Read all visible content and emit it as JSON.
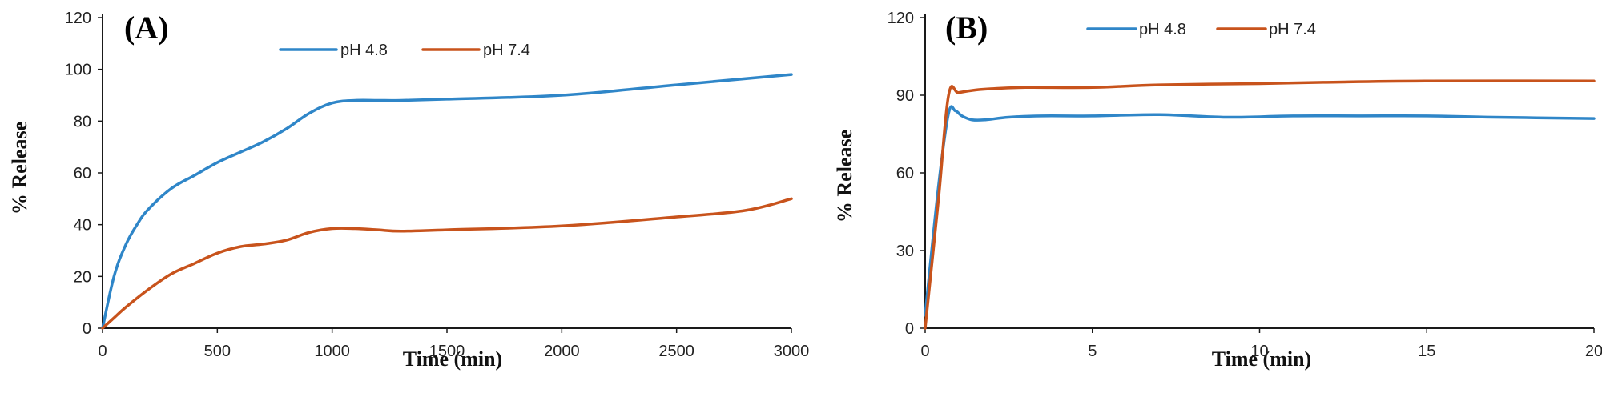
{
  "colors": {
    "pH48": "#2f86c8",
    "pH74": "#c8531c"
  },
  "chart_data": [
    {
      "type": "line",
      "panel_label": "(A)",
      "xlabel": "Time (min)",
      "ylabel": "% Release",
      "xlim": [
        0,
        3000
      ],
      "ylim": [
        0,
        120
      ],
      "xticks": [
        0,
        500,
        1000,
        1500,
        2000,
        2500,
        3000
      ],
      "yticks": [
        0,
        20,
        40,
        60,
        80,
        100,
        120
      ],
      "legend_position": "top-center",
      "series": [
        {
          "name": "pH 4.8",
          "color": "#2f86c8",
          "x": [
            0,
            50,
            100,
            150,
            200,
            300,
            400,
            500,
            600,
            700,
            800,
            900,
            1000,
            1100,
            1200,
            1300,
            1500,
            2000,
            2500,
            3000
          ],
          "y": [
            0,
            20,
            32,
            40,
            46,
            54,
            59,
            64,
            68,
            72,
            77,
            83,
            87,
            88,
            88,
            88,
            88.5,
            90,
            94,
            98
          ]
        },
        {
          "name": "pH 7.4",
          "color": "#c8531c",
          "x": [
            0,
            50,
            100,
            200,
            300,
            400,
            500,
            600,
            700,
            800,
            900,
            1000,
            1100,
            1200,
            1300,
            1500,
            2000,
            2500,
            2800,
            3000
          ],
          "y": [
            0,
            4,
            8,
            15,
            21,
            25,
            29,
            31.5,
            32.5,
            34,
            37,
            38.5,
            38.5,
            38,
            37.5,
            38,
            39.5,
            43,
            45.5,
            50
          ]
        }
      ]
    },
    {
      "type": "line",
      "panel_label": "(B)",
      "xlabel": "Time (min)",
      "ylabel": "% Release",
      "xlim": [
        0,
        20
      ],
      "ylim": [
        0,
        120
      ],
      "xticks": [
        0,
        5,
        10,
        15,
        20
      ],
      "yticks": [
        0,
        30,
        60,
        90,
        120
      ],
      "legend_position": "top-center",
      "series": [
        {
          "name": "pH 4.8",
          "color": "#2f86c8",
          "x": [
            0,
            0.4,
            0.7,
            0.9,
            1.1,
            1.4,
            1.8,
            2.5,
            3.5,
            5,
            7,
            9,
            11,
            13,
            15,
            17,
            20
          ],
          "y": [
            5,
            55,
            83,
            84,
            82,
            80.5,
            80.5,
            81.5,
            82,
            82,
            82.5,
            81.5,
            82,
            82,
            82,
            81.5,
            81
          ]
        },
        {
          "name": "pH 7.4",
          "color": "#c8531c",
          "x": [
            0,
            0.4,
            0.7,
            1.0,
            1.5,
            2,
            3,
            5,
            7,
            10,
            12,
            15,
            20
          ],
          "y": [
            0,
            50,
            90,
            91,
            92,
            92.5,
            93,
            93,
            94,
            94.5,
            95,
            95.5,
            95.5
          ]
        }
      ]
    }
  ]
}
